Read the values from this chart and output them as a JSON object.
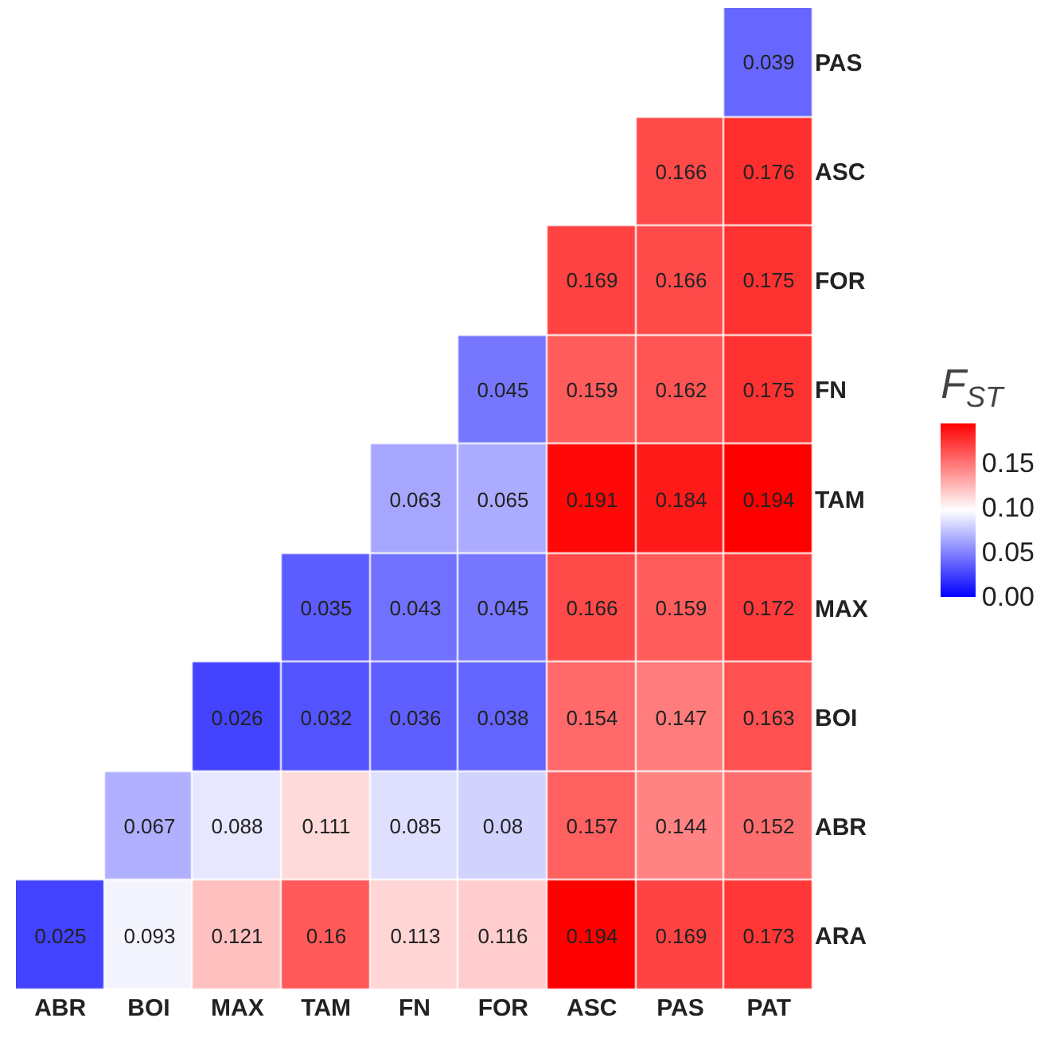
{
  "chart_data": {
    "type": "heatmap",
    "clabel": "F$_{ST}$",
    "categories": [
      "ABR",
      "BOI",
      "MAX",
      "TAM",
      "FN",
      "FOR",
      "ASC",
      "PAS",
      "PAT"
    ],
    "y_categories": [
      "PAS",
      "ASC",
      "FOR",
      "FN",
      "TAM",
      "MAX",
      "BOI",
      "ABR",
      "ARA"
    ],
    "cells": [
      [
        null,
        null,
        null,
        null,
        null,
        null,
        null,
        null,
        0.039
      ],
      [
        null,
        null,
        null,
        null,
        null,
        null,
        null,
        0.166,
        0.176
      ],
      [
        null,
        null,
        null,
        null,
        null,
        null,
        0.169,
        0.166,
        0.175
      ],
      [
        null,
        null,
        null,
        null,
        null,
        0.045,
        0.159,
        0.162,
        0.175
      ],
      [
        null,
        null,
        null,
        null,
        0.063,
        0.065,
        0.191,
        0.184,
        0.194
      ],
      [
        null,
        null,
        null,
        0.035,
        0.043,
        0.045,
        0.166,
        0.159,
        0.172
      ],
      [
        null,
        null,
        0.026,
        0.032,
        0.036,
        0.038,
        0.154,
        0.147,
        0.163
      ],
      [
        null,
        0.067,
        0.088,
        0.111,
        0.085,
        0.08,
        0.157,
        0.144,
        0.152
      ],
      [
        0.025,
        0.093,
        0.121,
        0.16,
        0.113,
        0.116,
        0.194,
        0.169,
        0.173
      ]
    ],
    "data_labels": true,
    "clim": [
      0,
      0.194
    ],
    "cticks": [
      {
        "value": 0,
        "label": "0.00"
      },
      {
        "value": 0.05,
        "label": "0.05"
      },
      {
        "value": 0.1,
        "label": "0.10"
      },
      {
        "value": 0.15,
        "label": "0.15"
      }
    ]
  }
}
